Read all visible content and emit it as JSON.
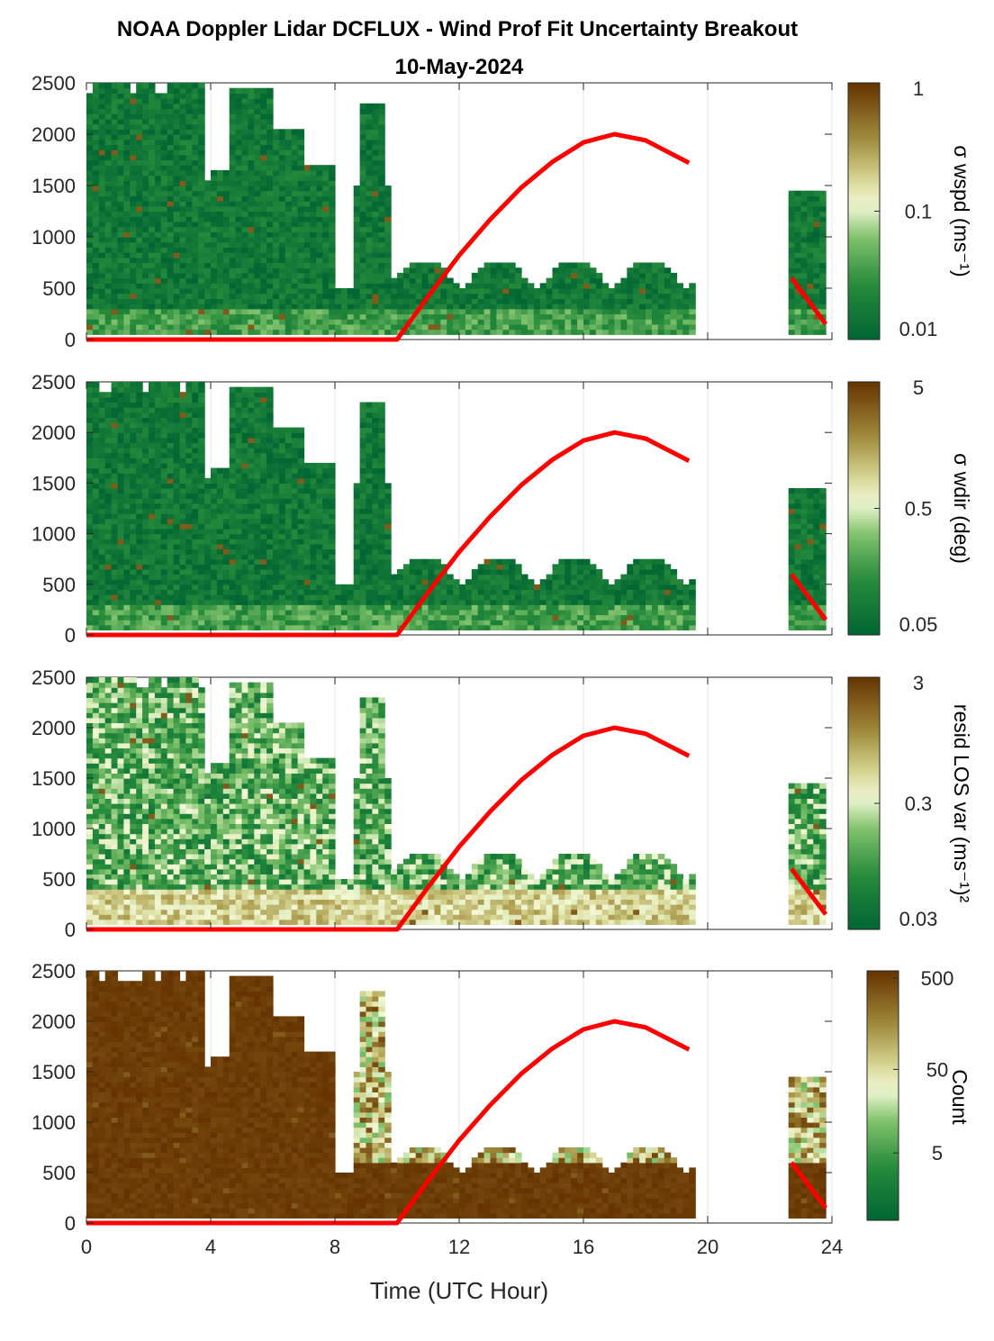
{
  "title": "NOAA Doppler Lidar DCFLUX - Wind Prof Fit Uncertainty Breakout",
  "subtitle": "10-May-2024",
  "xlabel": "Time (UTC Hour)",
  "colors": {
    "sun_line": "#ff0000",
    "low": "#006633",
    "mid": "#f2f8d6",
    "high": "#663300"
  },
  "chart_data": [
    {
      "type": "heatmap",
      "x_range": [
        0,
        24
      ],
      "y_range": [
        0,
        2500
      ],
      "x_ticks": [
        "0",
        "4",
        "8",
        "12",
        "16",
        "20",
        "24"
      ],
      "y_ticks": [
        "0",
        "500",
        "1000",
        "1500",
        "2000",
        "2500"
      ],
      "colorbar": {
        "label": "σ wspd (ms⁻¹)",
        "scale": "log",
        "range": [
          0.01,
          1
        ],
        "ticks": [
          "0.01",
          "0.1",
          "1"
        ]
      },
      "solar_curve": {
        "x": [
          0,
          10,
          11,
          12,
          13,
          14,
          15,
          16,
          17,
          18,
          19.4,
          22.7,
          23.8
        ],
        "y": [
          0,
          0,
          420,
          820,
          1170,
          1480,
          1730,
          1920,
          2000,
          1940,
          1720,
          600,
          150
        ]
      }
    },
    {
      "type": "heatmap",
      "x_range": [
        0,
        24
      ],
      "y_range": [
        0,
        2500
      ],
      "x_ticks": [
        "0",
        "4",
        "8",
        "12",
        "16",
        "20",
        "24"
      ],
      "y_ticks": [
        "0",
        "500",
        "1000",
        "1500",
        "2000",
        "2500"
      ],
      "colorbar": {
        "label": "σ wdir (deg)",
        "scale": "log",
        "range": [
          0.05,
          5
        ],
        "ticks": [
          "0.05",
          "0.5",
          "5"
        ]
      },
      "solar_curve": {
        "x": [
          0,
          10,
          11,
          12,
          13,
          14,
          15,
          16,
          17,
          18,
          19.4,
          22.7,
          23.8
        ],
        "y": [
          0,
          0,
          420,
          820,
          1170,
          1480,
          1730,
          1920,
          2000,
          1940,
          1720,
          600,
          150
        ]
      }
    },
    {
      "type": "heatmap",
      "x_range": [
        0,
        24
      ],
      "y_range": [
        0,
        2500
      ],
      "x_ticks": [
        "0",
        "4",
        "8",
        "12",
        "16",
        "20",
        "24"
      ],
      "y_ticks": [
        "0",
        "500",
        "1000",
        "1500",
        "2000",
        "2500"
      ],
      "colorbar": {
        "label": "resid LOS var (ms⁻¹)²",
        "scale": "log",
        "range": [
          0.03,
          3
        ],
        "ticks": [
          "0.03",
          "0.3",
          "3"
        ]
      },
      "solar_curve": {
        "x": [
          0,
          10,
          11,
          12,
          13,
          14,
          15,
          16,
          17,
          18,
          19.4,
          22.7,
          23.8
        ],
        "y": [
          0,
          0,
          420,
          820,
          1170,
          1480,
          1730,
          1920,
          2000,
          1940,
          1720,
          600,
          150
        ]
      }
    },
    {
      "type": "heatmap",
      "x_range": [
        0,
        24
      ],
      "y_range": [
        0,
        2500
      ],
      "x_ticks": [
        "0",
        "4",
        "8",
        "12",
        "16",
        "20",
        "24"
      ],
      "y_ticks": [
        "0",
        "500",
        "1000",
        "1500",
        "2000",
        "2500"
      ],
      "colorbar": {
        "label": "Count",
        "scale": "log",
        "range": [
          0.5,
          500
        ],
        "ticks": [
          "5",
          "50",
          "500"
        ]
      },
      "solar_curve": {
        "x": [
          0,
          10,
          11,
          12,
          13,
          14,
          15,
          16,
          17,
          18,
          19.4,
          22.7,
          23.8
        ],
        "y": [
          0,
          0,
          420,
          820,
          1170,
          1480,
          1730,
          1920,
          2000,
          1940,
          1720,
          600,
          150
        ]
      }
    }
  ]
}
